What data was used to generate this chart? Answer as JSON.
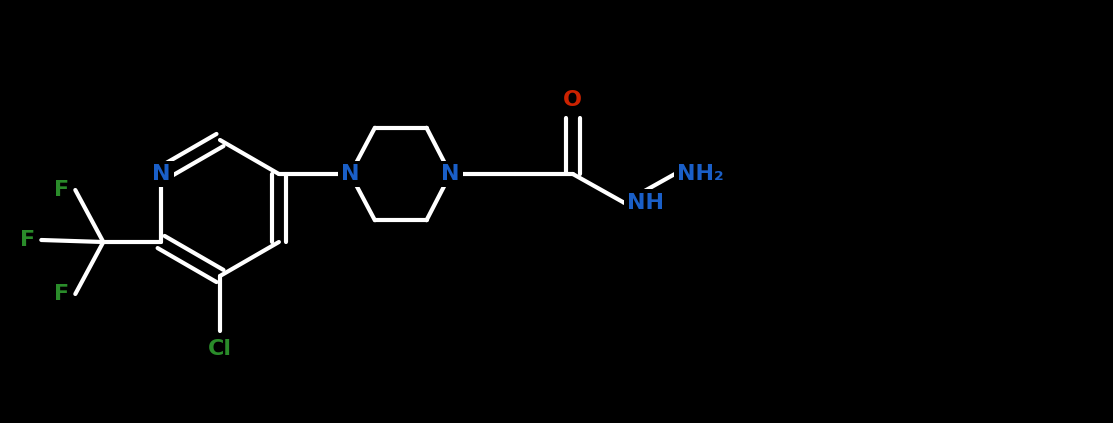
{
  "bg_color": "#000000",
  "bond_color": "#ffffff",
  "bond_width": 3.0,
  "atom_colors": {
    "N": "#1a5fc8",
    "O": "#cc2200",
    "F": "#2a8c2a",
    "Cl": "#2a8c2a",
    "NH": "#1a5fc8",
    "NH2": "#1a5fc8"
  },
  "font_size": 16,
  "figsize": [
    11.13,
    4.23
  ],
  "dpi": 100
}
